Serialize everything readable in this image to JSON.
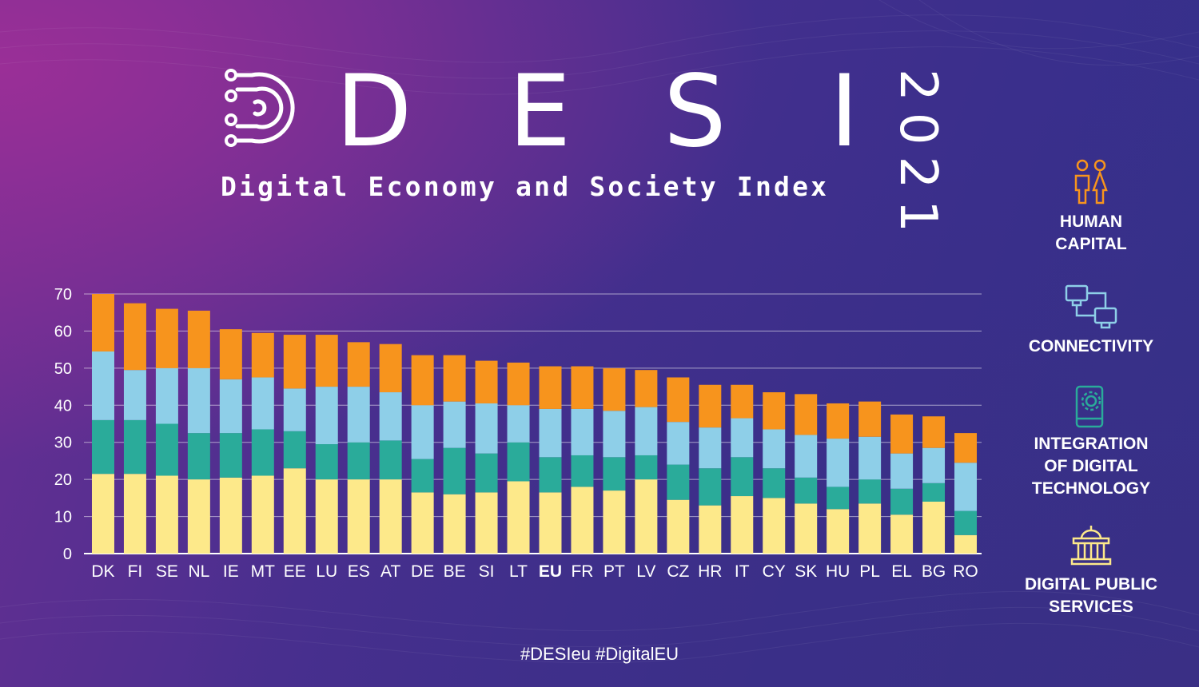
{
  "header": {
    "title_letters": [
      "D",
      "E",
      "S",
      "I"
    ],
    "subtitle": "Digital Economy and Society Index",
    "year": "2021"
  },
  "legend": {
    "items": [
      {
        "label": "HUMAN\nCAPITAL",
        "icon": "people-icon",
        "color": "#f7941d"
      },
      {
        "label": "CONNECTIVITY",
        "icon": "network-icon",
        "color": "#8ecfe8"
      },
      {
        "label": "INTEGRATION\nOF DIGITAL\nTECHNOLOGY",
        "icon": "phone-gear-icon",
        "color": "#2aab9a"
      },
      {
        "label": "DIGITAL PUBLIC\nSERVICES",
        "icon": "building-icon",
        "color": "#fde98a"
      }
    ]
  },
  "footer": {
    "hashtags": "#DESIeu  #DigitalEU"
  },
  "chart_data": {
    "type": "bar",
    "stacked": true,
    "categories": [
      "DK",
      "FI",
      "SE",
      "NL",
      "IE",
      "MT",
      "EE",
      "LU",
      "ES",
      "AT",
      "DE",
      "BE",
      "SI",
      "LT",
      "EU",
      "FR",
      "PT",
      "LV",
      "CZ",
      "HR",
      "IT",
      "CY",
      "SK",
      "HU",
      "PL",
      "EL",
      "BG",
      "RO"
    ],
    "highlight_category": "EU",
    "ylim": [
      0,
      70
    ],
    "yticks": [
      0,
      10,
      20,
      30,
      40,
      50,
      60,
      70
    ],
    "grid": true,
    "series": [
      {
        "name": "DIGITAL PUBLIC SERVICES",
        "color": "#fde98a",
        "values": [
          21.5,
          21.5,
          21,
          20,
          20.5,
          21,
          23,
          20,
          20,
          20,
          16.5,
          16,
          16.5,
          19.5,
          16.5,
          18,
          17,
          20,
          14.5,
          13,
          15.5,
          15,
          13.5,
          12,
          13.5,
          10.5,
          14,
          5
        ]
      },
      {
        "name": "INTEGRATION OF DIGITAL TECHNOLOGY",
        "color": "#2aab9a",
        "values": [
          14.5,
          14.5,
          14,
          12.5,
          12,
          12.5,
          10,
          9.5,
          10,
          10.5,
          9,
          12.5,
          10.5,
          10.5,
          9.5,
          8.5,
          9,
          6.5,
          9.5,
          10,
          10.5,
          8,
          7,
          6,
          6.5,
          7,
          5,
          6.5
        ]
      },
      {
        "name": "CONNECTIVITY",
        "color": "#8ecfe8",
        "values": [
          18.5,
          13.5,
          15,
          17.5,
          14.5,
          14,
          11.5,
          15.5,
          15,
          13,
          14.5,
          12.5,
          13.5,
          10,
          13,
          12.5,
          12.5,
          13,
          11.5,
          11,
          10.5,
          10.5,
          11.5,
          13,
          11.5,
          9.5,
          9.5,
          13
        ]
      },
      {
        "name": "HUMAN CAPITAL",
        "color": "#f7941d",
        "values": [
          15.5,
          18,
          16,
          15.5,
          13.5,
          12,
          14.5,
          14,
          12,
          13,
          13.5,
          12.5,
          11.5,
          11.5,
          11.5,
          11.5,
          11.5,
          10,
          12,
          11.5,
          9,
          10,
          11,
          9.5,
          9.5,
          10.5,
          8.5,
          8
        ]
      }
    ]
  }
}
